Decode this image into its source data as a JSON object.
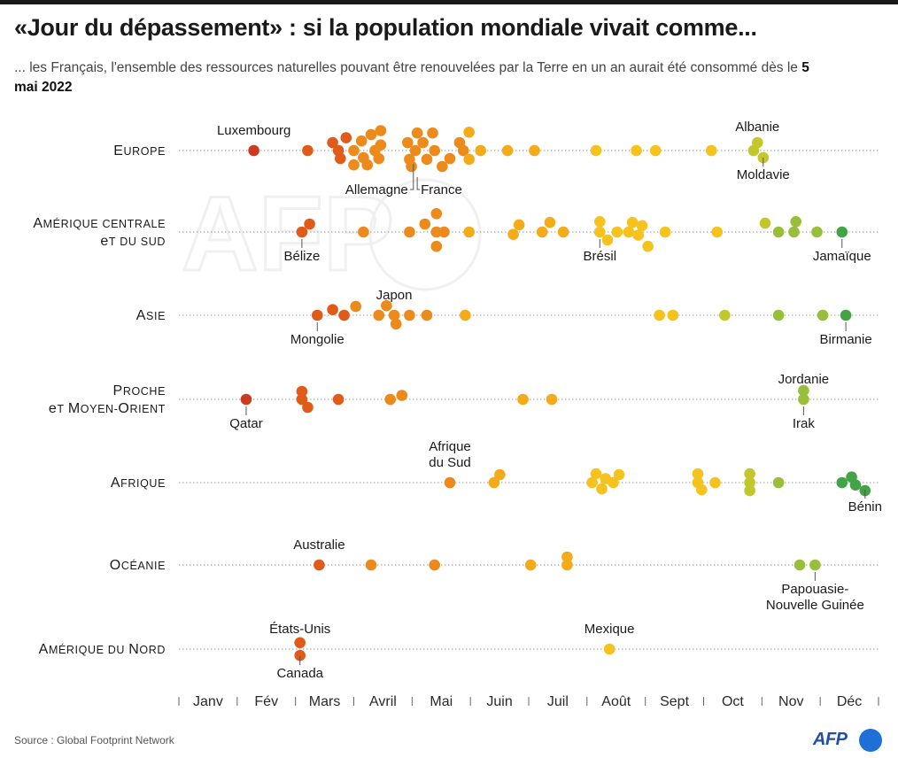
{
  "title": "«Jour du dépassement» : si la population mondiale vivait comme...",
  "subtitle": {
    "text": "... les Français, l'ensemble des ressources naturelles pouvant être renouvelées par la Terre en un an aurait été consommé dès le ",
    "highlight": "5 mai 2022"
  },
  "source": "Source : Global Footprint Network",
  "logo": "AFP",
  "colors": {
    "early": "#cc3a1f",
    "orange_red": "#e05a1a",
    "orange": "#ec8a1c",
    "amber": "#f3ab1a",
    "yellow": "#f6c21d",
    "lime": "#c3c72c",
    "yellowgreen": "#98bf3a",
    "green": "#43a447"
  },
  "chart_data": {
    "type": "scatter",
    "title": "",
    "xlabel": "",
    "ylabel": "",
    "x_unit": "jour de l'année",
    "xlim": [
      1,
      365
    ],
    "months": [
      "Janv",
      "Fév",
      "Mars",
      "Avril",
      "Mai",
      "Juin",
      "Juil",
      "Août",
      "Sept",
      "Oct",
      "Nov",
      "Déc"
    ],
    "rows": [
      {
        "name": "Europe",
        "points": [
          {
            "day": 40,
            "lane": 0
          },
          {
            "day": 68,
            "lane": 0
          },
          {
            "day": 81,
            "lane": -1
          },
          {
            "day": 84,
            "lane": 0
          },
          {
            "day": 85,
            "lane": 1
          },
          {
            "day": 88,
            "lane": -1.6
          },
          {
            "day": 92,
            "lane": 0
          },
          {
            "day": 92,
            "lane": 1.8
          },
          {
            "day": 96,
            "lane": -1.2
          },
          {
            "day": 97,
            "lane": 0.9
          },
          {
            "day": 99,
            "lane": 1.8
          },
          {
            "day": 101,
            "lane": -2
          },
          {
            "day": 103,
            "lane": 0
          },
          {
            "day": 105,
            "lane": 1
          },
          {
            "day": 106,
            "lane": -2.5
          },
          {
            "day": 106,
            "lane": -0.7
          },
          {
            "day": 120,
            "lane": -1
          },
          {
            "day": 121,
            "lane": 1.1
          },
          {
            "day": 122,
            "lane": 2
          },
          {
            "day": 124,
            "lane": 0
          },
          {
            "day": 125,
            "lane": -2.2
          },
          {
            "day": 128,
            "lane": -1
          },
          {
            "day": 130,
            "lane": 1.1
          },
          {
            "day": 133,
            "lane": -2.2
          },
          {
            "day": 134,
            "lane": 0
          },
          {
            "day": 138,
            "lane": 2
          },
          {
            "day": 142,
            "lane": 1
          },
          {
            "day": 147,
            "lane": -1
          },
          {
            "day": 149,
            "lane": 0
          },
          {
            "day": 152,
            "lane": -2.3
          },
          {
            "day": 152,
            "lane": 1.1
          },
          {
            "day": 158,
            "lane": 0
          },
          {
            "day": 172,
            "lane": 0
          },
          {
            "day": 186,
            "lane": 0
          },
          {
            "day": 218,
            "lane": 0
          },
          {
            "day": 239,
            "lane": 0
          },
          {
            "day": 249,
            "lane": 0
          },
          {
            "day": 278,
            "lane": 0
          },
          {
            "day": 300,
            "lane": 0
          },
          {
            "day": 302,
            "lane": -1
          },
          {
            "day": 305,
            "lane": 0.9
          }
        ]
      },
      {
        "name": "Amérique centrale et du sud",
        "points": [
          {
            "day": 65,
            "lane": 0
          },
          {
            "day": 69,
            "lane": -1
          },
          {
            "day": 97,
            "lane": 0
          },
          {
            "day": 121,
            "lane": 0
          },
          {
            "day": 129,
            "lane": -1
          },
          {
            "day": 135,
            "lane": -2.3
          },
          {
            "day": 135,
            "lane": 0
          },
          {
            "day": 135,
            "lane": 1.8
          },
          {
            "day": 139,
            "lane": 0
          },
          {
            "day": 152,
            "lane": 0
          },
          {
            "day": 175,
            "lane": 0.3
          },
          {
            "day": 178,
            "lane": -0.9
          },
          {
            "day": 190,
            "lane": 0
          },
          {
            "day": 194,
            "lane": -1.2
          },
          {
            "day": 201,
            "lane": 0
          },
          {
            "day": 220,
            "lane": 0
          },
          {
            "day": 220,
            "lane": -1.3
          },
          {
            "day": 224,
            "lane": 1
          },
          {
            "day": 229,
            "lane": 0
          },
          {
            "day": 235,
            "lane": 0
          },
          {
            "day": 237,
            "lane": -1.2
          },
          {
            "day": 240,
            "lane": 0.4
          },
          {
            "day": 242,
            "lane": -0.8
          },
          {
            "day": 245,
            "lane": 1.8
          },
          {
            "day": 254,
            "lane": 0
          },
          {
            "day": 281,
            "lane": 0
          },
          {
            "day": 306,
            "lane": -1.1
          },
          {
            "day": 313,
            "lane": 0
          },
          {
            "day": 321,
            "lane": 0
          },
          {
            "day": 322,
            "lane": -1.3
          },
          {
            "day": 333,
            "lane": 0
          },
          {
            "day": 346,
            "lane": 0
          }
        ]
      },
      {
        "name": "Asie",
        "points": [
          {
            "day": 73,
            "lane": 0
          },
          {
            "day": 81,
            "lane": -0.7
          },
          {
            "day": 87,
            "lane": 0
          },
          {
            "day": 93,
            "lane": -1.1
          },
          {
            "day": 105,
            "lane": 0
          },
          {
            "day": 109,
            "lane": -1.2
          },
          {
            "day": 113,
            "lane": 0
          },
          {
            "day": 114,
            "lane": 1.1
          },
          {
            "day": 121,
            "lane": 0
          },
          {
            "day": 130,
            "lane": 0
          },
          {
            "day": 150,
            "lane": 0
          },
          {
            "day": 251,
            "lane": 0
          },
          {
            "day": 258,
            "lane": 0
          },
          {
            "day": 285,
            "lane": 0
          },
          {
            "day": 313,
            "lane": 0
          },
          {
            "day": 336,
            "lane": 0
          },
          {
            "day": 348,
            "lane": 0
          }
        ]
      },
      {
        "name": "Proche et Moyen-Orient",
        "points": [
          {
            "day": 36,
            "lane": 0
          },
          {
            "day": 65,
            "lane": -1
          },
          {
            "day": 65,
            "lane": 0
          },
          {
            "day": 68,
            "lane": 1
          },
          {
            "day": 84,
            "lane": 0
          },
          {
            "day": 111,
            "lane": 0
          },
          {
            "day": 117,
            "lane": -0.5
          },
          {
            "day": 180,
            "lane": 0
          },
          {
            "day": 195,
            "lane": 0
          },
          {
            "day": 326,
            "lane": -1.1
          },
          {
            "day": 326,
            "lane": 0
          }
        ]
      },
      {
        "name": "Afrique",
        "points": [
          {
            "day": 142,
            "lane": 0
          },
          {
            "day": 165,
            "lane": 0
          },
          {
            "day": 168,
            "lane": -1
          },
          {
            "day": 216,
            "lane": 0
          },
          {
            "day": 218,
            "lane": -1.1
          },
          {
            "day": 221,
            "lane": 0.8
          },
          {
            "day": 223,
            "lane": -0.5
          },
          {
            "day": 227,
            "lane": 0
          },
          {
            "day": 230,
            "lane": -1
          },
          {
            "day": 271,
            "lane": -1.1
          },
          {
            "day": 271,
            "lane": 0
          },
          {
            "day": 273,
            "lane": 0.9
          },
          {
            "day": 280,
            "lane": 0
          },
          {
            "day": 298,
            "lane": -1.1
          },
          {
            "day": 298,
            "lane": 0
          },
          {
            "day": 298,
            "lane": 1
          },
          {
            "day": 313,
            "lane": 0
          },
          {
            "day": 346,
            "lane": 0
          },
          {
            "day": 351,
            "lane": -0.7
          },
          {
            "day": 353,
            "lane": 0.3
          },
          {
            "day": 358,
            "lane": 1
          }
        ]
      },
      {
        "name": "Océanie",
        "points": [
          {
            "day": 74,
            "lane": 0
          },
          {
            "day": 101,
            "lane": 0
          },
          {
            "day": 134,
            "lane": 0
          },
          {
            "day": 184,
            "lane": 0
          },
          {
            "day": 203,
            "lane": -1
          },
          {
            "day": 203,
            "lane": 0
          },
          {
            "day": 324,
            "lane": 0
          },
          {
            "day": 332,
            "lane": 0
          }
        ]
      },
      {
        "name": "Amérique du Nord",
        "points": [
          {
            "day": 64,
            "lane": -0.8
          },
          {
            "day": 64,
            "lane": 0.8
          },
          {
            "day": 225,
            "lane": 0
          }
        ]
      }
    ],
    "annotations": [
      {
        "row": 0,
        "text": "Luxembourg",
        "day": 40,
        "position": "above"
      },
      {
        "row": 0,
        "text": "Allemagne",
        "day": 123,
        "position": "below-left"
      },
      {
        "row": 0,
        "text": "France",
        "day": 125,
        "position": "below-right"
      },
      {
        "row": 0,
        "text": "Albanie",
        "day": 302,
        "position": "above"
      },
      {
        "row": 0,
        "text": "Moldavie",
        "day": 305,
        "position": "below"
      },
      {
        "row": 1,
        "text": "Bélize",
        "day": 65,
        "position": "below"
      },
      {
        "row": 1,
        "text": "Brésil",
        "day": 220,
        "position": "below"
      },
      {
        "row": 1,
        "text": "Jamaïque",
        "day": 346,
        "position": "below"
      },
      {
        "row": 2,
        "text": "Japon",
        "day": 113,
        "position": "above"
      },
      {
        "row": 2,
        "text": "Mongolie",
        "day": 73,
        "position": "below"
      },
      {
        "row": 2,
        "text": "Birmanie",
        "day": 348,
        "position": "below"
      },
      {
        "row": 3,
        "text": "Qatar",
        "day": 36,
        "position": "below"
      },
      {
        "row": 3,
        "text": "Jordanie",
        "day": 326,
        "position": "above"
      },
      {
        "row": 3,
        "text": "Irak",
        "day": 326,
        "position": "below"
      },
      {
        "row": 4,
        "text": "Afrique\ndu Sud",
        "day": 142,
        "position": "above"
      },
      {
        "row": 4,
        "text": "Bénin",
        "day": 358,
        "position": "below"
      },
      {
        "row": 5,
        "text": "Australie",
        "day": 74,
        "position": "above"
      },
      {
        "row": 5,
        "text": "Papouasie-\nNouvelle Guinée",
        "day": 332,
        "position": "below"
      },
      {
        "row": 6,
        "text": "États-Unis",
        "day": 64,
        "position": "above"
      },
      {
        "row": 6,
        "text": "Canada",
        "day": 64,
        "position": "below"
      },
      {
        "row": 6,
        "text": "Mexique",
        "day": 225,
        "position": "above"
      }
    ]
  }
}
